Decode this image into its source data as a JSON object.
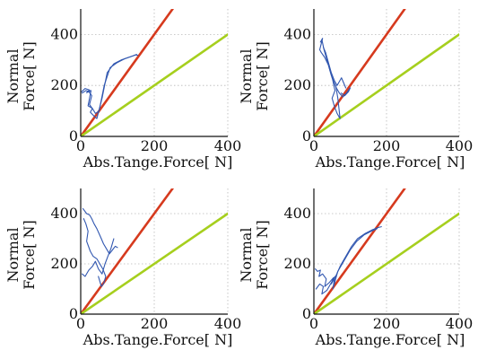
{
  "chart_data": [
    {
      "type": "line",
      "panel": "top-left",
      "xlabel": "Abs.Tange.Force[ N]",
      "ylabel_line1": "Normal",
      "ylabel_line2": "Force[ N]",
      "xlim": [
        0,
        400
      ],
      "ylim": [
        0,
        500
      ],
      "xticks": [
        0,
        200,
        400
      ],
      "yticks": [
        0,
        200,
        400
      ],
      "grid": true,
      "series": [
        {
          "color": "#d63a1e",
          "x": [
            0,
            250
          ],
          "y": [
            0,
            500
          ]
        },
        {
          "color": "#a6cf1e",
          "x": [
            0,
            400
          ],
          "y": [
            0,
            400
          ]
        },
        {
          "color": "#3157b0",
          "x": [
            2,
            12,
            24,
            16,
            28,
            20,
            32,
            26,
            36,
            44,
            58,
            72,
            90,
            110,
            130,
            150,
            155
          ],
          "y": [
            175,
            188,
            182,
            172,
            180,
            120,
            110,
            95,
            80,
            70,
            150,
            250,
            285,
            300,
            310,
            320,
            318
          ]
        },
        {
          "color": "#3157b0",
          "x": [
            4,
            14,
            22,
            30,
            24,
            34,
            40,
            50,
            64,
            80,
            100,
            120,
            140,
            152
          ],
          "y": [
            170,
            180,
            176,
            160,
            125,
            105,
            90,
            100,
            200,
            270,
            290,
            305,
            315,
            322
          ]
        }
      ]
    },
    {
      "type": "line",
      "panel": "top-right",
      "xlabel": "Abs.Tange.Force[ N]",
      "ylabel_line1": "Normal",
      "ylabel_line2": "Force[ N]",
      "xlim": [
        0,
        400
      ],
      "ylim": [
        0,
        500
      ],
      "xticks": [
        0,
        200,
        400
      ],
      "yticks": [
        0,
        200,
        400
      ],
      "grid": true,
      "series": [
        {
          "color": "#d63a1e",
          "x": [
            0,
            250
          ],
          "y": [
            0,
            500
          ]
        },
        {
          "color": "#a6cf1e",
          "x": [
            0,
            400
          ],
          "y": [
            0,
            400
          ]
        },
        {
          "color": "#3157b0",
          "x": [
            18,
            24,
            16,
            20,
            30,
            40,
            48,
            56,
            62,
            70,
            80,
            90,
            100,
            95,
            85,
            75
          ],
          "y": [
            370,
            385,
            340,
            330,
            310,
            280,
            240,
            210,
            190,
            170,
            155,
            170,
            190,
            175,
            160,
            170
          ]
        },
        {
          "color": "#3157b0",
          "x": [
            22,
            28,
            36,
            44,
            52,
            58,
            50,
            56,
            64,
            72,
            66,
            60
          ],
          "y": [
            380,
            340,
            300,
            260,
            220,
            180,
            150,
            120,
            90,
            70,
            150,
            200
          ]
        },
        {
          "color": "#3157b0",
          "x": [
            26,
            32,
            40,
            48,
            56,
            64,
            70,
            76,
            82,
            88
          ],
          "y": [
            350,
            330,
            290,
            250,
            220,
            200,
            215,
            230,
            210,
            190
          ]
        }
      ]
    },
    {
      "type": "line",
      "panel": "bottom-left",
      "xlabel": "Abs.Tange.Force[ N]",
      "ylabel_line1": "Normal",
      "ylabel_line2": "Force[ N]",
      "xlim": [
        0,
        400
      ],
      "ylim": [
        0,
        500
      ],
      "xticks": [
        0,
        200,
        400
      ],
      "yticks": [
        0,
        200,
        400
      ],
      "grid": true,
      "series": [
        {
          "color": "#d63a1e",
          "x": [
            0,
            250
          ],
          "y": [
            0,
            500
          ]
        },
        {
          "color": "#a6cf1e",
          "x": [
            0,
            400
          ],
          "y": [
            0,
            400
          ]
        },
        {
          "color": "#3157b0",
          "x": [
            6,
            16,
            24,
            30,
            36,
            44,
            50,
            56,
            62,
            70,
            78,
            86,
            94,
            100
          ],
          "y": [
            420,
            400,
            395,
            380,
            360,
            340,
            320,
            300,
            280,
            260,
            240,
            255,
            270,
            265
          ]
        },
        {
          "color": "#3157b0",
          "x": [
            8,
            14,
            20,
            16,
            26,
            34,
            44,
            52,
            60,
            68,
            62,
            56,
            48
          ],
          "y": [
            380,
            360,
            330,
            290,
            250,
            230,
            220,
            200,
            180,
            150,
            120,
            110,
            150
          ]
        },
        {
          "color": "#3157b0",
          "x": [
            4,
            12,
            22,
            32,
            40,
            48,
            58,
            66,
            74,
            82,
            90
          ],
          "y": [
            160,
            150,
            175,
            190,
            210,
            180,
            160,
            200,
            230,
            260,
            300
          ]
        }
      ]
    },
    {
      "type": "line",
      "panel": "bottom-right",
      "xlabel": "Abs.Tange.Force[ N]",
      "ylabel_line1": "Normal",
      "ylabel_line2": "Force[ N]",
      "xlim": [
        0,
        400
      ],
      "ylim": [
        0,
        500
      ],
      "xticks": [
        0,
        200,
        400
      ],
      "yticks": [
        0,
        200,
        400
      ],
      "grid": true,
      "series": [
        {
          "color": "#d63a1e",
          "x": [
            0,
            250
          ],
          "y": [
            0,
            500
          ]
        },
        {
          "color": "#a6cf1e",
          "x": [
            0,
            400
          ],
          "y": [
            0,
            400
          ]
        },
        {
          "color": "#3157b0",
          "x": [
            4,
            10,
            18,
            14,
            24,
            34,
            30,
            42,
            54,
            48,
            60,
            72,
            88,
            104,
            120,
            140,
            160,
            178,
            186
          ],
          "y": [
            180,
            170,
            175,
            150,
            160,
            140,
            110,
            125,
            145,
            120,
            150,
            190,
            230,
            270,
            300,
            320,
            335,
            345,
            348
          ]
        },
        {
          "color": "#3157b0",
          "x": [
            6,
            16,
            26,
            22,
            36,
            46,
            58,
            52,
            66,
            82,
            100,
            118,
            138,
            158,
            174
          ],
          "y": [
            100,
            120,
            110,
            80,
            95,
            120,
            150,
            100,
            170,
            210,
            255,
            290,
            315,
            330,
            340
          ]
        }
      ]
    }
  ]
}
